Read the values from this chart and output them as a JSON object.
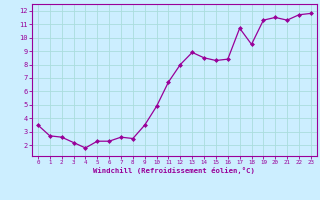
{
  "x": [
    0,
    1,
    2,
    3,
    4,
    5,
    6,
    7,
    8,
    9,
    10,
    11,
    12,
    13,
    14,
    15,
    16,
    17,
    18,
    19,
    20,
    21,
    22,
    23
  ],
  "y": [
    3.5,
    2.7,
    2.6,
    2.2,
    1.8,
    2.3,
    2.3,
    2.6,
    2.5,
    3.5,
    4.9,
    6.7,
    8.0,
    8.9,
    8.5,
    8.3,
    8.4,
    10.7,
    9.5,
    11.3,
    11.5,
    11.3,
    11.7,
    11.8
  ],
  "line_color": "#990099",
  "marker": "D",
  "marker_size": 2.0,
  "bg_color": "#cceeff",
  "grid_color": "#aadddd",
  "xlabel": "Windchill (Refroidissement éolien,°C)",
  "xlim": [
    -0.5,
    23.5
  ],
  "ylim": [
    1.2,
    12.5
  ],
  "yticks": [
    2,
    3,
    4,
    5,
    6,
    7,
    8,
    9,
    10,
    11,
    12
  ],
  "xticks": [
    0,
    1,
    2,
    3,
    4,
    5,
    6,
    7,
    8,
    9,
    10,
    11,
    12,
    13,
    14,
    15,
    16,
    17,
    18,
    19,
    20,
    21,
    22,
    23
  ],
  "tick_color": "#990099",
  "label_color": "#990099",
  "spine_color": "#990099"
}
